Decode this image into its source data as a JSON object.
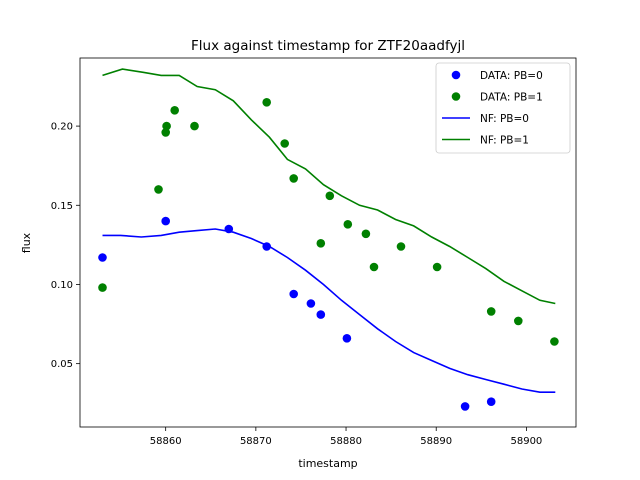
{
  "chart_data": {
    "type": "scatter",
    "title": "Flux against timestamp for ZTF20aadfyjl",
    "xlabel": "timestamp",
    "ylabel": "flux",
    "xlim": [
      58850.5,
      58905.5
    ],
    "ylim": [
      0.01,
      0.243
    ],
    "xticks": [
      58860,
      58870,
      58880,
      58890,
      58900
    ],
    "yticks": [
      0.05,
      0.1,
      0.15,
      0.2
    ],
    "xtick_labels": [
      "58860",
      "58870",
      "58880",
      "58890",
      "58900"
    ],
    "ytick_labels": [
      "0.05",
      "0.10",
      "0.15",
      "0.20"
    ],
    "grid": false,
    "legend_position": "top-right",
    "series": [
      {
        "name": "DATA: PB=0",
        "kind": "points",
        "color": "#0000ff",
        "points": [
          [
            58853.0,
            0.117
          ],
          [
            58860.0,
            0.14
          ],
          [
            58867.0,
            0.135
          ],
          [
            58871.2,
            0.124
          ],
          [
            58874.2,
            0.094
          ],
          [
            58876.1,
            0.088
          ],
          [
            58877.2,
            0.081
          ],
          [
            58880.1,
            0.066
          ],
          [
            58893.2,
            0.023
          ],
          [
            58896.1,
            0.026
          ]
        ]
      },
      {
        "name": "DATA: PB=1",
        "kind": "points",
        "color": "#008000",
        "points": [
          [
            58853.0,
            0.098
          ],
          [
            58859.2,
            0.16
          ],
          [
            58860.0,
            0.196
          ],
          [
            58860.1,
            0.2
          ],
          [
            58861.0,
            0.21
          ],
          [
            58863.2,
            0.2
          ],
          [
            58871.2,
            0.215
          ],
          [
            58873.2,
            0.189
          ],
          [
            58874.2,
            0.167
          ],
          [
            58877.2,
            0.126
          ],
          [
            58878.2,
            0.156
          ],
          [
            58880.2,
            0.138
          ],
          [
            58882.2,
            0.132
          ],
          [
            58883.1,
            0.111
          ],
          [
            58886.1,
            0.124
          ],
          [
            58890.1,
            0.111
          ],
          [
            58896.1,
            0.083
          ],
          [
            58899.1,
            0.077
          ],
          [
            58903.1,
            0.064
          ]
        ]
      },
      {
        "name": "NF: PB=0",
        "kind": "line",
        "color": "#0000ff",
        "points": [
          [
            58853.0,
            0.131
          ],
          [
            58855.0,
            0.131
          ],
          [
            58857.3,
            0.13
          ],
          [
            58859.5,
            0.131
          ],
          [
            58861.5,
            0.133
          ],
          [
            58863.5,
            0.134
          ],
          [
            58865.5,
            0.135
          ],
          [
            58867.5,
            0.133
          ],
          [
            58869.5,
            0.129
          ],
          [
            58871.5,
            0.124
          ],
          [
            58873.5,
            0.117
          ],
          [
            58875.5,
            0.109
          ],
          [
            58877.5,
            0.1
          ],
          [
            58879.5,
            0.09
          ],
          [
            58881.5,
            0.081
          ],
          [
            58883.5,
            0.072
          ],
          [
            58885.5,
            0.064
          ],
          [
            58887.5,
            0.057
          ],
          [
            58889.5,
            0.052
          ],
          [
            58891.5,
            0.047
          ],
          [
            58893.5,
            0.043
          ],
          [
            58895.5,
            0.04
          ],
          [
            58897.5,
            0.037
          ],
          [
            58899.5,
            0.034
          ],
          [
            58901.5,
            0.032
          ],
          [
            58903.2,
            0.032
          ]
        ]
      },
      {
        "name": "NF: PB=1",
        "kind": "line",
        "color": "#008000",
        "points": [
          [
            58853.0,
            0.232
          ],
          [
            58855.2,
            0.236
          ],
          [
            58857.5,
            0.234
          ],
          [
            58859.5,
            0.232
          ],
          [
            58861.5,
            0.232
          ],
          [
            58863.5,
            0.225
          ],
          [
            58865.5,
            0.223
          ],
          [
            58867.5,
            0.216
          ],
          [
            58869.5,
            0.204
          ],
          [
            58871.5,
            0.193
          ],
          [
            58873.5,
            0.179
          ],
          [
            58875.5,
            0.173
          ],
          [
            58877.5,
            0.163
          ],
          [
            58879.5,
            0.156
          ],
          [
            58881.5,
            0.15
          ],
          [
            58883.5,
            0.147
          ],
          [
            58885.5,
            0.141
          ],
          [
            58887.5,
            0.137
          ],
          [
            58889.5,
            0.13
          ],
          [
            58891.5,
            0.124
          ],
          [
            58893.5,
            0.117
          ],
          [
            58895.5,
            0.11
          ],
          [
            58897.5,
            0.102
          ],
          [
            58899.5,
            0.096
          ],
          [
            58901.5,
            0.09
          ],
          [
            58903.2,
            0.088
          ]
        ]
      }
    ]
  }
}
